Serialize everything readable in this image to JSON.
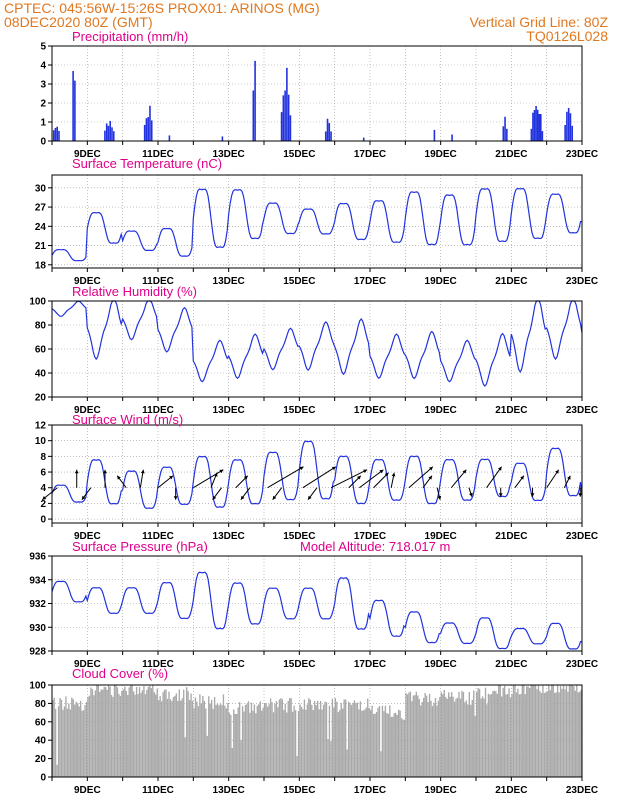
{
  "header": {
    "line1": "CPTEC:   045:56W-15:26S   PROX01: ARINOS (MG)",
    "line2_left": "08DEC2020 80Z (GMT)",
    "line2_right": "Vertical Grid Line: 80Z",
    "line3_right": "TQ0126L028"
  },
  "colors": {
    "header": "#e07820",
    "panel_title": "#e0008a",
    "series": "#2233dd",
    "cloud": "#a9a9a9",
    "grid": "#999999"
  },
  "date_labels": [
    "9DEC",
    "11DEC",
    "13DEC",
    "15DEC",
    "17DEC",
    "19DEC",
    "21DEC",
    "23DEC"
  ],
  "chart_data": [
    {
      "type": "bar",
      "title": "Precipitation (mm/h)",
      "x_range_days": [
        8.0,
        23.0
      ],
      "ylim": [
        0,
        5
      ],
      "yticks": [
        "0",
        "1",
        "2",
        "3",
        "4",
        "5"
      ],
      "events": [
        {
          "day": 8.1,
          "width": 0.25,
          "peak": 1.2
        },
        {
          "day": 8.6,
          "width": 0.15,
          "peak": 4.5
        },
        {
          "day": 9.6,
          "width": 0.35,
          "peak": 1.4
        },
        {
          "day": 10.7,
          "width": 0.3,
          "peak": 2.2
        },
        {
          "day": 11.3,
          "width": 0.1,
          "peak": 0.3
        },
        {
          "day": 12.8,
          "width": 0.1,
          "peak": 0.3
        },
        {
          "day": 13.7,
          "width": 0.15,
          "peak": 4.9
        },
        {
          "day": 14.6,
          "width": 0.35,
          "peak": 4.4
        },
        {
          "day": 15.8,
          "width": 0.25,
          "peak": 1.3
        },
        {
          "day": 16.8,
          "width": 0.1,
          "peak": 0.2
        },
        {
          "day": 18.8,
          "width": 0.1,
          "peak": 0.9
        },
        {
          "day": 19.3,
          "width": 0.1,
          "peak": 0.6
        },
        {
          "day": 20.8,
          "width": 0.2,
          "peak": 1.3
        },
        {
          "day": 21.7,
          "width": 0.4,
          "peak": 2.5
        },
        {
          "day": 22.6,
          "width": 0.3,
          "peak": 1.8
        }
      ]
    },
    {
      "type": "line",
      "title": "Surface Temperature (nC)",
      "x_range_days": [
        8.0,
        23.0
      ],
      "ylim": [
        17.5,
        32
      ],
      "yticks": [
        "18",
        "21",
        "24",
        "27",
        "30"
      ],
      "daily_max": [
        20.5,
        26.5,
        23.5,
        24.0,
        30.5,
        30.3,
        28.0,
        27.0,
        28.0,
        28.5,
        30.0,
        29.5,
        30.5,
        30.5,
        29.5,
        26.5
      ],
      "daily_min": [
        18.5,
        21.0,
        20.0,
        19.0,
        20.0,
        21.5,
        22.5,
        22.5,
        21.5,
        21.0,
        20.5,
        20.5,
        21.0,
        21.5,
        22.5,
        23.0
      ]
    },
    {
      "type": "line",
      "title": "Relative Humidity (%)",
      "x_range_days": [
        8.0,
        23.0
      ],
      "ylim": [
        20,
        100
      ],
      "yticks": [
        "20",
        "40",
        "60",
        "80",
        "100"
      ],
      "daily_max": [
        99,
        100,
        100,
        92,
        65,
        70,
        75,
        80,
        82,
        70,
        72,
        65,
        70,
        100,
        100,
        92
      ],
      "daily_min": [
        88,
        55,
        70,
        60,
        35,
        38,
        45,
        45,
        42,
        38,
        38,
        35,
        32,
        45,
        55,
        55
      ]
    },
    {
      "type": "line",
      "title": "Surface Wind (m/s)",
      "x_range_days": [
        8.0,
        23.0
      ],
      "ylim": [
        -0.5,
        12
      ],
      "yticks": [
        "0",
        "2",
        "4",
        "6",
        "8",
        "10",
        "12"
      ],
      "daily_max": [
        4.5,
        8.0,
        6.5,
        7.0,
        8.5,
        8.0,
        9.0,
        10.5,
        8.5,
        8.0,
        8.5,
        8.0,
        8.0,
        7.5,
        9.5,
        5.0
      ],
      "daily_min": [
        2.0,
        1.5,
        1.0,
        1.5,
        1.0,
        1.5,
        2.0,
        2.0,
        1.5,
        2.0,
        1.5,
        2.0,
        2.5,
        2.0,
        2.5,
        1.0
      ],
      "vectors": [
        {
          "day": 8.15,
          "u": -2.5,
          "v": -2.0
        },
        {
          "day": 8.7,
          "u": 0.0,
          "v": 3.0
        },
        {
          "day": 9.1,
          "u": -1.5,
          "v": -2.0
        },
        {
          "day": 9.5,
          "u": 0.0,
          "v": 3.0
        },
        {
          "day": 10.1,
          "u": -1.5,
          "v": 2.0
        },
        {
          "day": 10.5,
          "u": 0.5,
          "v": 3.0
        },
        {
          "day": 11.0,
          "u": 2.5,
          "v": 2.0
        },
        {
          "day": 11.5,
          "u": 0.0,
          "v": -2.0
        },
        {
          "day": 12.0,
          "u": 5.0,
          "v": 3.0
        },
        {
          "day": 12.5,
          "u": 1.0,
          "v": 2.5
        },
        {
          "day": 12.8,
          "u": -1.5,
          "v": -2.0
        },
        {
          "day": 13.2,
          "u": 2.0,
          "v": 2.0
        },
        {
          "day": 13.6,
          "u": -1.5,
          "v": -2.0
        },
        {
          "day": 14.1,
          "u": 6.0,
          "v": 3.5
        },
        {
          "day": 14.5,
          "u": -1.5,
          "v": -2.0
        },
        {
          "day": 15.1,
          "u": 5.5,
          "v": 3.5
        },
        {
          "day": 15.5,
          "u": -1.5,
          "v": -2.0
        },
        {
          "day": 15.9,
          "u": 6.0,
          "v": 3.0
        },
        {
          "day": 16.4,
          "u": 2.0,
          "v": 2.0
        },
        {
          "day": 16.7,
          "u": 4.0,
          "v": 3.0
        },
        {
          "day": 17.1,
          "u": 2.5,
          "v": 2.5
        },
        {
          "day": 17.6,
          "u": 0.5,
          "v": 2.5
        },
        {
          "day": 18.1,
          "u": 4.0,
          "v": 3.5
        },
        {
          "day": 18.5,
          "u": 1.5,
          "v": 2.0
        },
        {
          "day": 18.9,
          "u": 0.5,
          "v": -2.0
        },
        {
          "day": 19.3,
          "u": 2.5,
          "v": 3.0
        },
        {
          "day": 19.8,
          "u": 0.5,
          "v": -1.5
        },
        {
          "day": 20.3,
          "u": 2.5,
          "v": 3.5
        },
        {
          "day": 20.7,
          "u": 0.0,
          "v": -1.5
        },
        {
          "day": 21.1,
          "u": 1.5,
          "v": 2.0
        },
        {
          "day": 21.6,
          "u": 0.0,
          "v": -1.5
        },
        {
          "day": 22.0,
          "u": 2.0,
          "v": 3.0
        },
        {
          "day": 22.5,
          "u": 1.0,
          "v": 2.0
        },
        {
          "day": 22.95,
          "u": 0.0,
          "v": -1.5
        }
      ]
    },
    {
      "type": "line",
      "title": "Surface Pressure (hPa)",
      "annotation": "Model Altitude: 718.017 m",
      "x_range_days": [
        8.0,
        23.0
      ],
      "ylim": [
        928,
        936
      ],
      "yticks": [
        "928",
        "930",
        "932",
        "934",
        "936"
      ],
      "daily_max": [
        934.0,
        933.5,
        933.5,
        934.0,
        935.0,
        934.0,
        933.5,
        933.5,
        934.5,
        932.5,
        931.5,
        930.5,
        931.0,
        930.0,
        930.5,
        929.0
      ],
      "daily_min": [
        932.0,
        931.0,
        931.0,
        930.5,
        929.5,
        930.0,
        930.5,
        930.5,
        929.5,
        929.0,
        928.5,
        928.5,
        928.0,
        928.5,
        928.0,
        928.5
      ]
    },
    {
      "type": "area",
      "title": "Cloud Cover (%)",
      "x_range_days": [
        8.0,
        23.0
      ],
      "ylim": [
        0,
        100
      ],
      "yticks": [
        "0",
        "20",
        "40",
        "60",
        "80",
        "100"
      ],
      "daily_mean": [
        80,
        95,
        97,
        90,
        82,
        75,
        78,
        80,
        78,
        70,
        85,
        88,
        92,
        97,
        98,
        98
      ],
      "daily_low": [
        5,
        75,
        85,
        40,
        30,
        20,
        15,
        30,
        20,
        10,
        50,
        60,
        70,
        85,
        90,
        90
      ]
    }
  ]
}
